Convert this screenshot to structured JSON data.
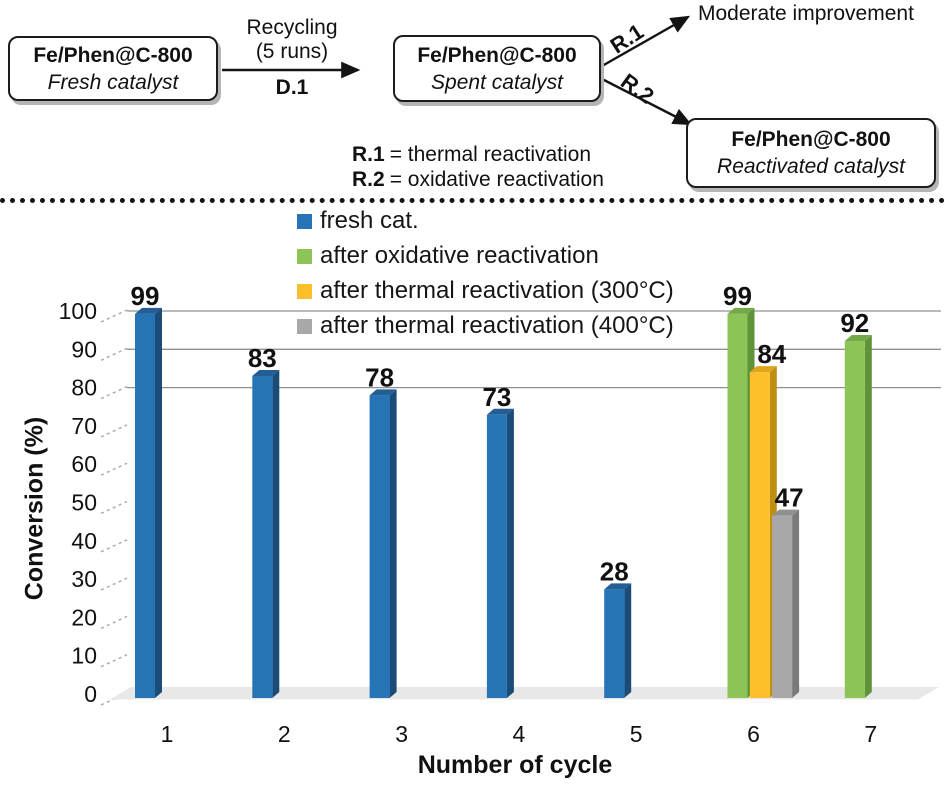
{
  "scheme": {
    "fresh_box": {
      "line1": "Fe/Phen@C-800",
      "line2": "Fresh catalyst"
    },
    "recycle_arrow": {
      "top1": "Recycling",
      "top2": "(5 runs)",
      "bottom": "D.1"
    },
    "spent_box": {
      "line1": "Fe/Phen@C-800",
      "line2": "Spent catalyst"
    },
    "r1_tag": "R.1",
    "r2_tag": "R.2",
    "moderate_text": "Moderate improvement",
    "reactivated_box": {
      "line1": "Fe/Phen@C-800",
      "line2": "Reactivated catalyst"
    },
    "definitions": [
      {
        "key": "R.1",
        "text": "= thermal reactivation"
      },
      {
        "key": "R.2",
        "text": "= oxidative reactivation"
      }
    ]
  },
  "chart_data": {
    "type": "bar",
    "title": "",
    "xlabel": "Number of cycle",
    "ylabel": "Conversion (%)",
    "ylim": [
      0,
      100
    ],
    "yticks": [
      0,
      10,
      20,
      30,
      40,
      50,
      60,
      70,
      80,
      90,
      100
    ],
    "gridlines_at": [
      80,
      90,
      100
    ],
    "grid": "partial",
    "legend_position": "upper center",
    "categories": [
      1,
      2,
      3,
      4,
      5,
      6,
      7
    ],
    "legend": [
      {
        "label": "fresh cat.",
        "color": "#2673B5"
      },
      {
        "label": "after oxidative reactivation",
        "color": "#8DC458"
      },
      {
        "label": "after thermal reactivation (300°C)",
        "color": "#FCC02A"
      },
      {
        "label": "after thermal reactivation (400°C)",
        "color": "#A8A8A8"
      }
    ],
    "series": [
      {
        "name": "fresh cat.",
        "colors": {
          "front": "#2673B5",
          "side": "#1A4C78",
          "top": "#235E94"
        },
        "points": [
          {
            "cycle": 1,
            "value": 99
          },
          {
            "cycle": 2,
            "value": 83
          },
          {
            "cycle": 3,
            "value": 78
          },
          {
            "cycle": 4,
            "value": 73
          },
          {
            "cycle": 5,
            "value": 28
          }
        ]
      },
      {
        "name": "after oxidative reactivation",
        "colors": {
          "front": "#8DC458",
          "side": "#5E9338",
          "top": "#74A94A"
        },
        "points": [
          {
            "cycle": 6,
            "value": 99
          },
          {
            "cycle": 7,
            "value": 92
          }
        ]
      },
      {
        "name": "after thermal reactivation (300°C)",
        "colors": {
          "front": "#FCC02A",
          "side": "#C08E12",
          "top": "#DFA51B"
        },
        "points": [
          {
            "cycle": 6,
            "value": 84
          }
        ]
      },
      {
        "name": "after thermal reactivation (400°C)",
        "colors": {
          "front": "#A8A8A8",
          "side": "#7A7A7A",
          "top": "#909090"
        },
        "points": [
          {
            "cycle": 6,
            "value": 47
          }
        ]
      }
    ]
  }
}
